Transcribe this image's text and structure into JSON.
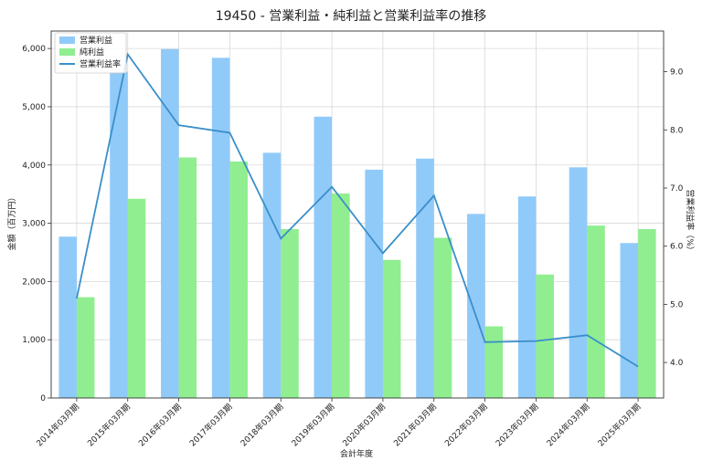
{
  "chart_data": {
    "type": "bar",
    "title": "19450 - 営業利益・純利益と営業利益率の推移",
    "xlabel": "会計年度",
    "ylabel": "金額（百万円）",
    "y2label": "営業利益率（%）",
    "categories": [
      "2014年03月期",
      "2015年03月期",
      "2016年03月期",
      "2017年03月期",
      "2018年03月期",
      "2019年03月期",
      "2020年03月期",
      "2021年03月期",
      "2022年03月期",
      "2023年03月期",
      "2024年03月期",
      "2025年03月期"
    ],
    "series": [
      {
        "name": "営業利益",
        "kind": "bar",
        "axis": "left",
        "color": "#90caf9",
        "values": [
          2770,
          5600,
          5990,
          5840,
          4210,
          4830,
          3920,
          4110,
          3160,
          3460,
          3960,
          2660
        ]
      },
      {
        "name": "純利益",
        "kind": "bar",
        "axis": "left",
        "color": "#90ee90",
        "values": [
          1730,
          3420,
          4130,
          4060,
          2900,
          3510,
          2370,
          2750,
          1230,
          2120,
          2960,
          2900
        ]
      },
      {
        "name": "営業利益率",
        "kind": "line",
        "axis": "right",
        "color": "#3a8fc9",
        "values": [
          5.1,
          9.3,
          8.08,
          7.95,
          6.13,
          7.02,
          5.88,
          6.87,
          4.35,
          4.37,
          4.47,
          3.93
        ]
      }
    ],
    "ylim": [
      0,
      6300
    ],
    "yticks": [
      0,
      1000,
      2000,
      3000,
      4000,
      5000,
      6000
    ],
    "ytick_labels": [
      "0",
      "1,000",
      "2,000",
      "3,000",
      "4,000",
      "5,000",
      "6,000"
    ],
    "y2lim": [
      3.39,
      9.7
    ],
    "y2ticks": [
      4.0,
      5.0,
      6.0,
      7.0,
      8.0,
      9.0
    ],
    "y2tick_labels": [
      "4.0",
      "5.0",
      "6.0",
      "7.0",
      "8.0",
      "9.0"
    ],
    "grid": true,
    "legend_position": "top-left"
  }
}
